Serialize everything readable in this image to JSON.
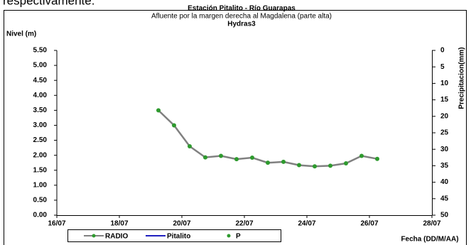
{
  "header_text": "respectivamente.",
  "chart_data": {
    "type": "line",
    "title": "Estación Pitalito  - Río Guarapas",
    "subtitle": "Afluente por la margen derecha al Magdalena (parte alta)",
    "subtitle2": "Hydras3",
    "y_label": "Nivel (m)",
    "y2_label": "Precipitacion(mm)",
    "x_label": "Fecha (DD/M/AA)",
    "x": [
      19.25,
      19.75,
      20.25,
      20.75,
      21.25,
      21.75,
      22.25,
      22.75,
      23.25,
      23.75,
      24.25,
      24.75,
      25.25,
      25.75,
      26.25
    ],
    "xlim": [
      16,
      28
    ],
    "xticks": [
      {
        "value": 16,
        "label": "16/07"
      },
      {
        "value": 18,
        "label": "18/07"
      },
      {
        "value": 20,
        "label": "20/07"
      },
      {
        "value": 22,
        "label": "22/07"
      },
      {
        "value": 24,
        "label": "24/07"
      },
      {
        "value": 26,
        "label": "26/07"
      },
      {
        "value": 28,
        "label": "28/07"
      }
    ],
    "ylim": [
      0,
      5.5
    ],
    "yticks": [
      {
        "value": 0,
        "label": "0.00"
      },
      {
        "value": 0.5,
        "label": "0.50"
      },
      {
        "value": 1,
        "label": "1.00"
      },
      {
        "value": 1.5,
        "label": "1.50"
      },
      {
        "value": 2,
        "label": "2.00"
      },
      {
        "value": 2.5,
        "label": "2.50"
      },
      {
        "value": 3,
        "label": "3.00"
      },
      {
        "value": 3.5,
        "label": "3.50"
      },
      {
        "value": 4,
        "label": "4.00"
      },
      {
        "value": 4.5,
        "label": "4.50"
      },
      {
        "value": 5,
        "label": "5.00"
      },
      {
        "value": 5.5,
        "label": "5.50"
      }
    ],
    "y2lim": [
      50,
      0
    ],
    "y2ticks": [
      0,
      5,
      10,
      15,
      20,
      25,
      30,
      35,
      40,
      45,
      50
    ],
    "grid": false,
    "legend": "bottom",
    "series": [
      {
        "name": "RADIO",
        "color": "#808080",
        "marker_color": "#2e9a2e",
        "style": "line-marker",
        "values": [
          3.5,
          3.0,
          2.3,
          1.93,
          1.98,
          1.87,
          1.92,
          1.75,
          1.78,
          1.67,
          1.63,
          1.65,
          1.73,
          1.98,
          1.88
        ]
      },
      {
        "name": "Pitalito",
        "color": "#1f1fbf",
        "style": "line",
        "values": [
          null,
          null,
          null,
          null,
          null,
          null,
          null,
          null,
          null,
          null,
          null,
          null,
          null,
          null,
          null
        ]
      },
      {
        "name": "P",
        "color": "#2e9a2e",
        "style": "marker",
        "axis": "y2",
        "values": [
          null,
          null,
          null,
          null,
          null,
          null,
          null,
          null,
          null,
          null,
          null,
          null,
          null,
          null,
          null
        ]
      }
    ]
  }
}
